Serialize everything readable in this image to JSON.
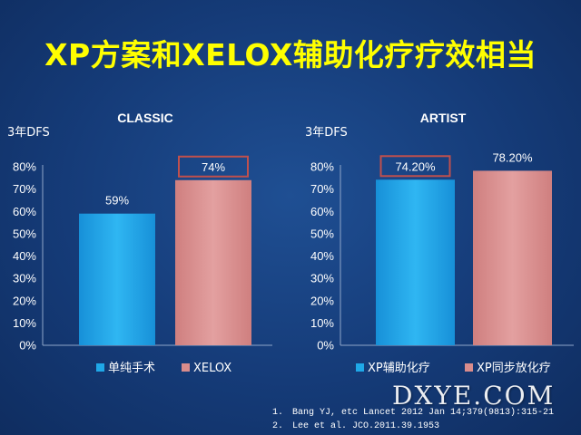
{
  "slide": {
    "title": "XP方案和XELOX辅助化疗疗效相当",
    "references": [
      {
        "num": "1.",
        "text": "Bang YJ, etc Lancet 2012 Jan 14;379(9813):315-21"
      },
      {
        "num": "2.",
        "text": "Lee et al. JCO.2011.39.1953"
      }
    ],
    "watermark": "DXYE.COM"
  },
  "colors": {
    "background": "#153b78",
    "title": "#ffff00",
    "series1": "#1fa8e8",
    "series2": "#d98c8c",
    "highlight_box": "#c0504d"
  },
  "chart_data": [
    {
      "type": "bar",
      "title": "CLASSIC",
      "ylabel": "3年DFS",
      "ylim": [
        0,
        80
      ],
      "yticks": [
        "0%",
        "10%",
        "20%",
        "30%",
        "40%",
        "50%",
        "60%",
        "70%",
        "80%"
      ],
      "grid": false,
      "legend_position": "bottom",
      "series": [
        {
          "name": "单纯手术",
          "value": 59,
          "label": "59%",
          "color": "#1fa8e8",
          "highlighted": false
        },
        {
          "name": "XELOX",
          "value": 74,
          "label": "74%",
          "color": "#d98c8c",
          "highlighted": true
        }
      ]
    },
    {
      "type": "bar",
      "title": "ARTIST",
      "ylabel": "3年DFS",
      "ylim": [
        0,
        80
      ],
      "yticks": [
        "0%",
        "10%",
        "20%",
        "30%",
        "40%",
        "50%",
        "60%",
        "70%",
        "80%"
      ],
      "grid": false,
      "legend_position": "bottom",
      "series": [
        {
          "name": "XP辅助化疗",
          "value": 74.2,
          "label": "74.20%",
          "color": "#1fa8e8",
          "highlighted": true
        },
        {
          "name": "XP同步放化疗",
          "value": 78.2,
          "label": "78.20%",
          "color": "#d98c8c",
          "highlighted": false
        }
      ]
    }
  ]
}
